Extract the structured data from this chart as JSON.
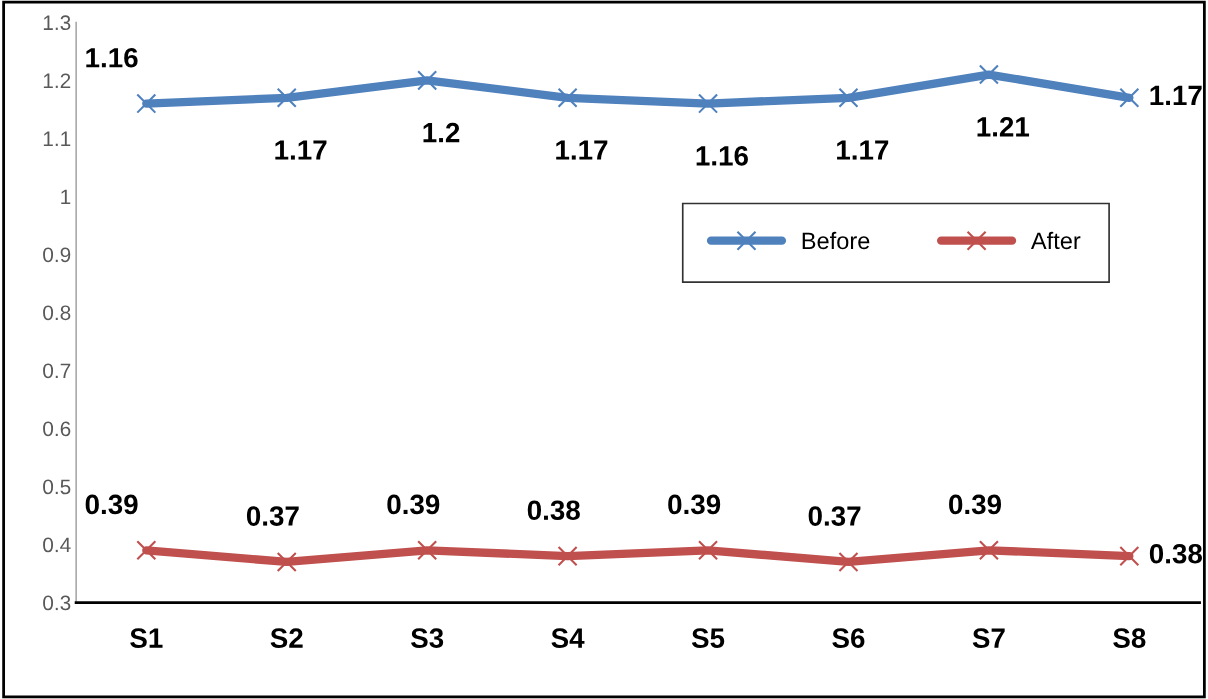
{
  "chart_data": {
    "type": "line",
    "categories": [
      "S1",
      "S2",
      "S3",
      "S4",
      "S5",
      "S6",
      "S7",
      "S8"
    ],
    "series": [
      {
        "name": "Before",
        "color": "#4f81bd",
        "values": [
          1.16,
          1.17,
          1.2,
          1.17,
          1.16,
          1.17,
          1.21,
          1.17
        ]
      },
      {
        "name": "After",
        "color": "#c0504d",
        "values": [
          0.39,
          0.37,
          0.39,
          0.38,
          0.39,
          0.37,
          0.39,
          0.38
        ]
      }
    ],
    "ylim": [
      0.3,
      1.3
    ],
    "yticks": [
      0.3,
      0.4,
      0.5,
      0.6,
      0.7,
      0.8,
      0.9,
      1,
      1.1,
      1.2,
      1.3
    ],
    "data_labels": true,
    "marker": "cross",
    "line_style": "solid",
    "grid": false,
    "legend": "right"
  }
}
